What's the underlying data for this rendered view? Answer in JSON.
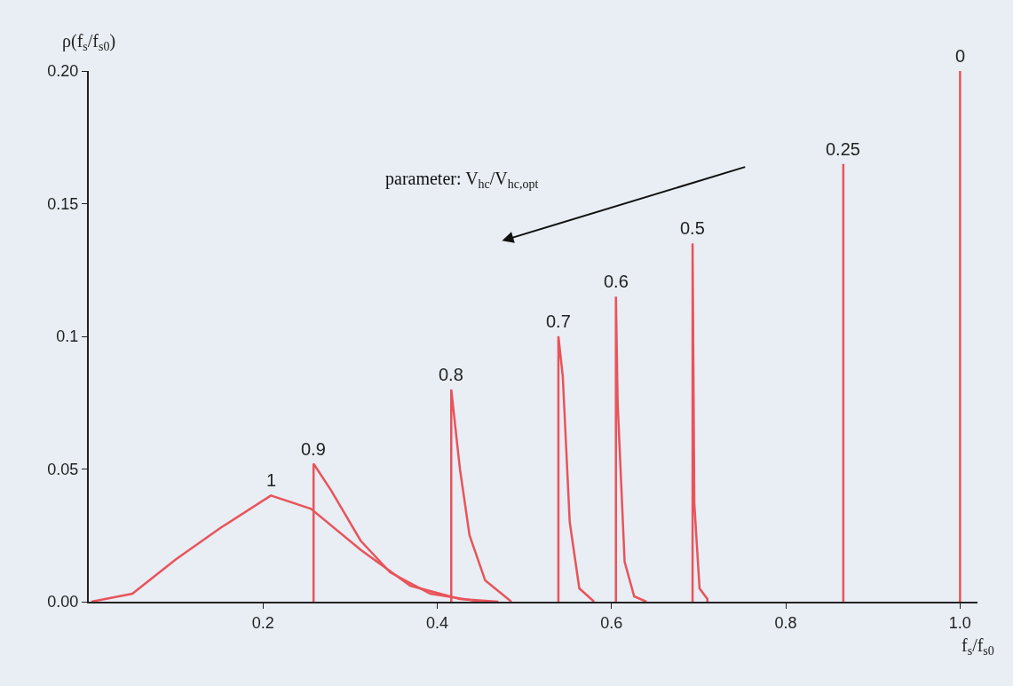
{
  "chart_data": {
    "type": "line",
    "xlabel": "f$_{s}$/f$_{s0}$",
    "ylabel": "ρ(f$_{s}$/f$_{s0}$)",
    "xlim": [
      0,
      1.02
    ],
    "xticks": [
      0.2,
      0.4,
      0.6,
      0.8,
      {
        "value": 1.0,
        "label": "1.0"
      }
    ],
    "ylim": [
      0,
      0.2
    ],
    "yticks": [
      {
        "value": 0,
        "label": "0.00"
      },
      0.05,
      0.1,
      0.15,
      {
        "value": 0.2,
        "label": "0.20"
      }
    ],
    "grid": false,
    "legend": false,
    "marker": "none",
    "line_style": "solid",
    "annotations": [
      "parameter: V$_{hc}$/V$_{hc,opt}$"
    ],
    "series": [
      {
        "name": "1",
        "color": "#e8545a",
        "x": [
          0.003,
          0.05,
          0.1,
          0.152,
          0.209,
          0.255,
          0.312,
          0.369,
          0.426,
          0.47
        ],
        "values": [
          0,
          0.003,
          0.016,
          0.028,
          0.04,
          0.035,
          0.0196,
          0.006,
          0.001,
          0
        ]
      },
      {
        "name": "0.9",
        "color": "#e8545a",
        "x": [
          0.258,
          0.258,
          0.278,
          0.312,
          0.346,
          0.392,
          0.45
        ],
        "values": [
          0,
          0.052,
          0.042,
          0.023,
          0.011,
          0.003,
          0
        ]
      },
      {
        "name": "0.8",
        "color": "#e8545a",
        "x": [
          0.416,
          0.416,
          0.426,
          0.437,
          0.455,
          0.485
        ],
        "values": [
          0,
          0.08,
          0.05,
          0.025,
          0.008,
          0
        ]
      },
      {
        "name": "0.7",
        "color": "#e8545a",
        "x": [
          0.539,
          0.539,
          0.544,
          0.552,
          0.563,
          0.58
        ],
        "values": [
          0,
          0.1,
          0.085,
          0.03,
          0.005,
          0
        ]
      },
      {
        "name": "0.6",
        "color": "#e8545a",
        "x": [
          0.605,
          0.605,
          0.607,
          0.615,
          0.626,
          0.64
        ],
        "values": [
          0,
          0.115,
          0.075,
          0.015,
          0.002,
          0
        ]
      },
      {
        "name": "0.5",
        "color": "#e8545a",
        "x": [
          0.693,
          0.693,
          0.695,
          0.701,
          0.71,
          0.71
        ],
        "values": [
          0,
          0.135,
          0.037,
          0.005,
          0.001,
          0
        ]
      },
      {
        "name": "0.25",
        "color": "#e8545a",
        "x": [
          0.866,
          0.866
        ],
        "values": [
          0,
          0.165
        ]
      },
      {
        "name": "0",
        "color": "#e8545a",
        "x": [
          1.0,
          1.0
        ],
        "values": [
          0,
          0.2
        ]
      }
    ]
  }
}
